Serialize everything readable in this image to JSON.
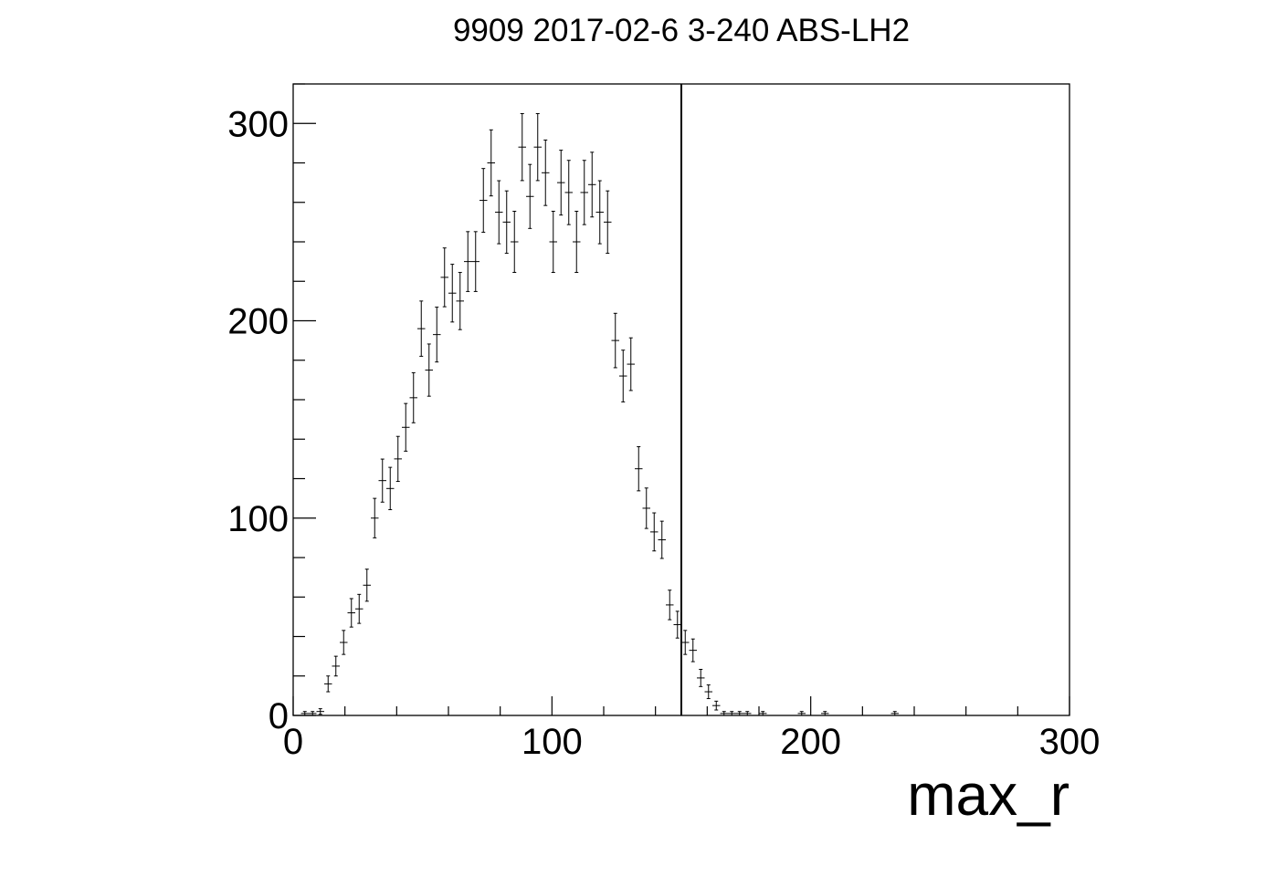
{
  "chart_data": {
    "type": "scatter",
    "title": "9909 2017-02-6 3-240 ABS-LH2",
    "xlabel": "max_r",
    "ylabel": "",
    "xlim": [
      0,
      300
    ],
    "ylim": [
      0,
      320
    ],
    "x_ticks": [
      "0",
      "100",
      "200",
      "300"
    ],
    "y_ticks": [
      "0",
      "100",
      "200",
      "300"
    ],
    "grid": false,
    "legend": "none",
    "marker_line_x": 150,
    "bin_width": 3,
    "series": [
      {
        "x": [
          4.5,
          7.5,
          10.5,
          13.5,
          16.5,
          19.5,
          22.5,
          25.5,
          28.5,
          31.5,
          34.5,
          37.5,
          40.5,
          43.5,
          46.5,
          49.5,
          52.5,
          55.5,
          58.5,
          61.5,
          64.5,
          67.5,
          70.5,
          73.5,
          76.5,
          79.5,
          82.5,
          85.5,
          88.5,
          91.5,
          94.5,
          97.5,
          100.5,
          103.5,
          106.5,
          109.5,
          112.5,
          115.5,
          118.5,
          121.5,
          124.5,
          127.5,
          130.5,
          133.5,
          136.5,
          139.5,
          142.5,
          145.5,
          148.5,
          151.5,
          154.5,
          157.5,
          160.5,
          163.5,
          166.5,
          169.5,
          172.5,
          175.5,
          181.5,
          196.5,
          205.5,
          232.5
        ],
        "y": [
          1,
          1,
          2,
          16,
          25,
          37,
          52,
          54,
          66,
          100,
          119,
          115,
          130,
          146,
          161,
          196,
          175,
          193,
          222,
          214,
          210,
          230,
          230,
          261,
          280,
          255,
          250,
          240,
          288,
          263,
          288,
          275,
          240,
          270,
          265,
          240,
          265,
          269,
          255,
          250,
          190,
          172,
          178,
          125,
          105,
          93,
          89,
          56,
          46,
          37,
          33,
          19,
          12,
          5,
          1,
          1,
          1,
          1,
          1,
          1,
          1,
          1
        ]
      }
    ]
  }
}
